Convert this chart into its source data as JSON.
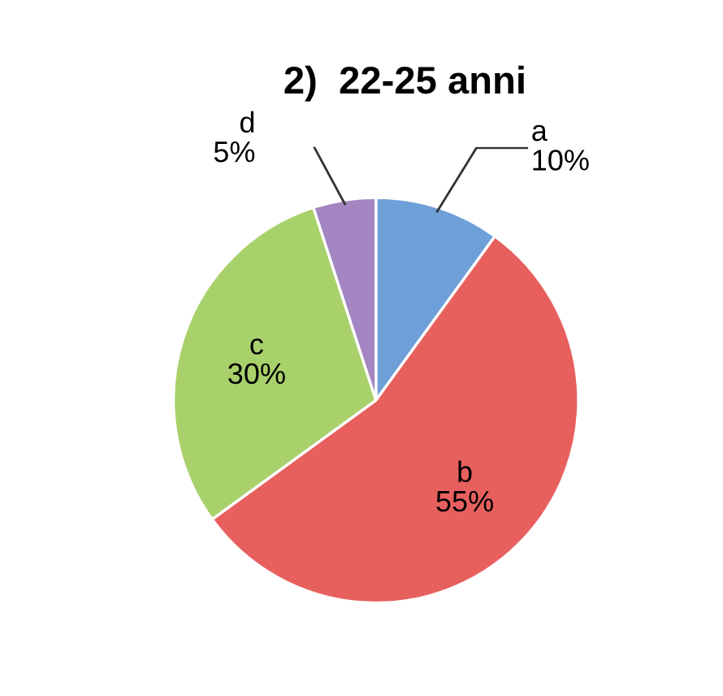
{
  "chart_data": {
    "type": "pie",
    "title": "2)  22-25 anni",
    "categories": [
      "a",
      "b",
      "c",
      "d"
    ],
    "values": [
      10,
      55,
      30,
      5
    ],
    "value_labels": [
      "10%",
      "55%",
      "30%",
      "5%"
    ],
    "colors": [
      "#6f9fd8",
      "#e8605e",
      "#a9d16b",
      "#a386c2"
    ],
    "legend": false
  }
}
